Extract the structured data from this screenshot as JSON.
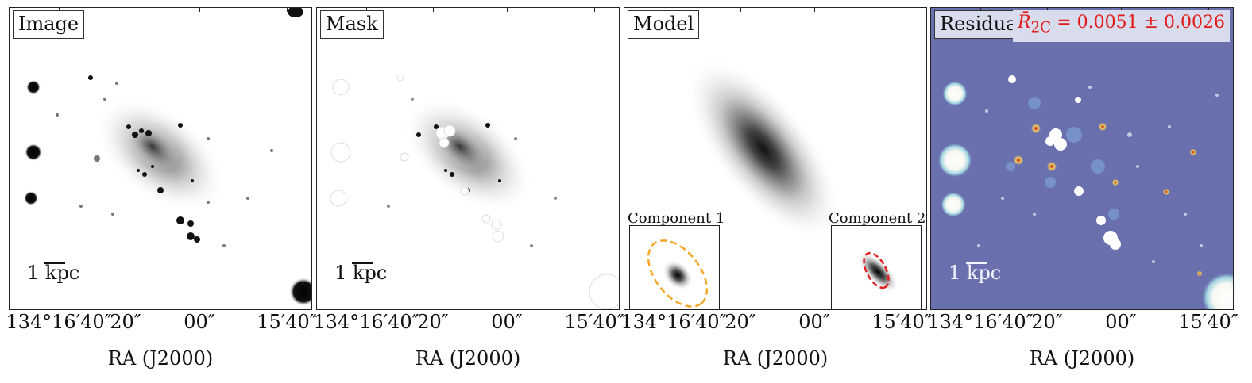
{
  "panels": {
    "image": {
      "title": "Image",
      "scale_label": "1 kpc"
    },
    "mask": {
      "title": "Mask",
      "scale_label": "1 kpc"
    },
    "model": {
      "title": "Model",
      "component1_label": "Component 1",
      "component2_label": "Component 2",
      "component1_ellipse_color": "#f5a623",
      "component2_ellipse_color": "#e02020"
    },
    "residual": {
      "title": "Residual",
      "scale_label": "1 kpc",
      "stat_symbol": "R̄",
      "stat_sub": "2C",
      "stat_value": " = 0.0051 ± 0.0026",
      "background_color": "#6a6fae",
      "stat_color": "#e21a1a"
    }
  },
  "axes": {
    "xlabel": "RA (J2000)",
    "ticks": [
      "134°16′40″",
      "20″",
      "00″",
      "15′40″"
    ]
  }
}
